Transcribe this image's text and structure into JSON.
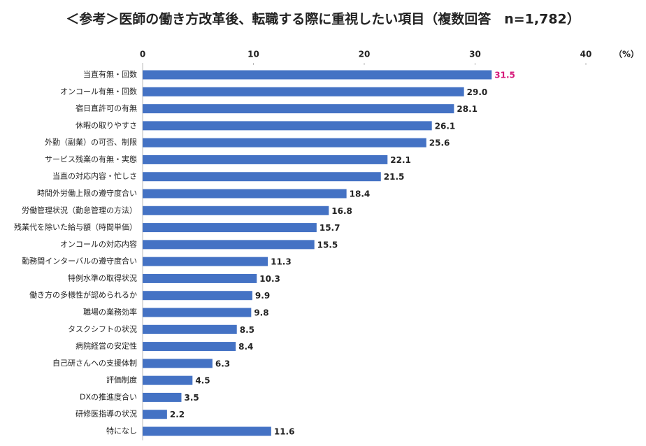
{
  "chart_data": {
    "type": "bar",
    "orientation": "horizontal",
    "title": "＜参考＞医師の働き方改革後、転職する際に重視したい項目（複数回答　n=1,782）",
    "unit_label": "（%）",
    "categories": [
      "当直有無・回数",
      "オンコール有無・回数",
      "宿日直許可の有無",
      "休暇の取りやすさ",
      "外勤（副業）の可否、制限",
      "サービス残業の有無・実態",
      "当直の対応内容・忙しさ",
      "時間外労働上限の遵守度合い",
      "労働管理状況（勤怠管理の方法）",
      "残業代を除いた給与額（時間単価）",
      "オンコールの対応内容",
      "勤務間インターバルの遵守度合い",
      "特例水準の取得状況",
      "働き方の多様性が認められるか",
      "職場の業務効率",
      "タスクシフトの状況",
      "病院経営の安定性",
      "自己研さんへの支援体制",
      "評価制度",
      "DXの推進度合い",
      "研修医指導の状況",
      "特になし"
    ],
    "values": [
      31.5,
      29.0,
      28.1,
      26.1,
      25.6,
      22.1,
      21.5,
      18.4,
      16.8,
      15.7,
      15.5,
      11.3,
      10.3,
      9.9,
      9.8,
      8.5,
      8.4,
      6.3,
      4.5,
      3.5,
      2.2,
      11.6
    ],
    "value_labels": [
      "31.5",
      "29.0",
      "28.1",
      "26.1",
      "25.6",
      "22.1",
      "21.5",
      "18.4",
      "16.8",
      "15.7",
      "15.5",
      "11.3",
      "10.3",
      "9.9",
      "9.8",
      "8.5",
      "8.4",
      "6.3",
      "4.5",
      "3.5",
      "2.2",
      "11.6"
    ],
    "label_colors": [
      "#d6197a",
      "#222222",
      "#222222",
      "#222222",
      "#222222",
      "#222222",
      "#222222",
      "#222222",
      "#222222",
      "#222222",
      "#222222",
      "#222222",
      "#222222",
      "#222222",
      "#222222",
      "#222222",
      "#222222",
      "#222222",
      "#222222",
      "#222222",
      "#222222",
      "#222222"
    ],
    "color": "#4472c4",
    "xlim": [
      0,
      40
    ],
    "xticks": [
      0,
      10,
      20,
      30,
      40
    ]
  }
}
